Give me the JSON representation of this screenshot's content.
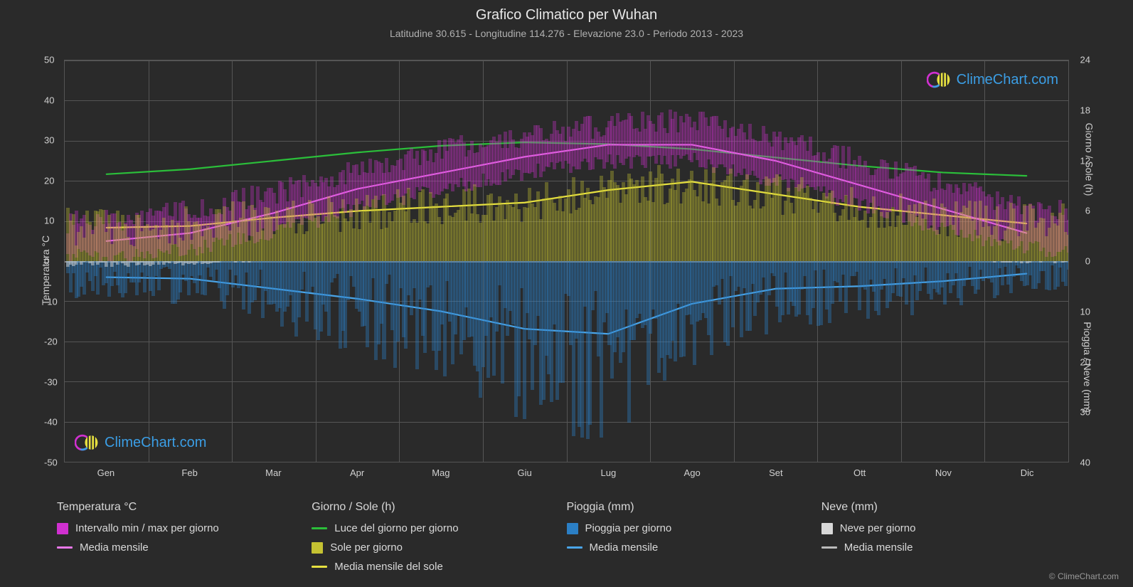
{
  "title": "Grafico Climatico per Wuhan",
  "subtitle": "Latitudine 30.615 - Longitudine 114.276 - Elevazione 23.0 - Periodo 2013 - 2023",
  "brand": "ClimeChart.com",
  "copyright": "© ClimeChart.com",
  "chart": {
    "background_color": "#2a2a2a",
    "grid_color": "#555555",
    "zero_line_color": "#888888",
    "text_color": "#d0d0d0",
    "months": [
      "Gen",
      "Feb",
      "Mar",
      "Apr",
      "Mag",
      "Giu",
      "Lug",
      "Ago",
      "Set",
      "Ott",
      "Nov",
      "Dic"
    ],
    "left_axis": {
      "label": "Temperatura °C",
      "min": -50,
      "max": 50,
      "step": 10,
      "ticks": [
        -50,
        -40,
        -30,
        -20,
        -10,
        0,
        10,
        20,
        30,
        40,
        50
      ]
    },
    "right_axis_top": {
      "label": "Giorno / Sole (h)",
      "min": 0,
      "max": 24,
      "step": 6,
      "ticks": [
        0,
        6,
        12,
        18,
        24
      ]
    },
    "right_axis_bot": {
      "label": "Pioggia / Neve (mm)",
      "min": 0,
      "max": 40,
      "step": 10,
      "ticks": [
        0,
        10,
        20,
        30,
        40
      ]
    },
    "series": {
      "temp_range_fill_color": "#d030d0",
      "temp_range_opacity": 0.55,
      "temp_mean_color": "#e878e8",
      "daylight_color": "#2bbf3a",
      "sun_fill_color": "#c5c232",
      "sun_fill_opacity": 0.5,
      "sun_mean_color": "#e6e040",
      "rain_fill_color": "#2b7fc5",
      "rain_fill_opacity": 0.55,
      "rain_mean_color": "#4aa5e8",
      "snow_fill_color": "#d8d8d8",
      "snow_mean_color": "#bbbbbb",
      "line_width": 2.2
    },
    "temp_mean_monthly": [
      5,
      7,
      12,
      18,
      22,
      26,
      29,
      29,
      25,
      19,
      13,
      7
    ],
    "temp_max_monthly": [
      10,
      13,
      17,
      23,
      28,
      31,
      34,
      35,
      30,
      25,
      19,
      13
    ],
    "temp_min_monthly": [
      1,
      3,
      7,
      13,
      18,
      22,
      25,
      25,
      20,
      14,
      8,
      3
    ],
    "daylight_monthly_h": [
      10.4,
      11.0,
      12.0,
      13.0,
      13.8,
      14.2,
      14.0,
      13.4,
      12.4,
      11.4,
      10.6,
      10.2
    ],
    "sun_mean_monthly_h": [
      4.0,
      4.2,
      5.2,
      6.0,
      6.5,
      7.0,
      8.5,
      9.5,
      8.0,
      6.5,
      5.5,
      4.5
    ],
    "rain_mean_monthly_mm": [
      3.2,
      3.5,
      5.5,
      7.5,
      10.0,
      13.5,
      14.5,
      8.5,
      5.5,
      5.0,
      4.0,
      2.5
    ],
    "snow_mean_monthly_mm": [
      0.3,
      0.2,
      0,
      0,
      0,
      0,
      0,
      0,
      0,
      0,
      0,
      0.1
    ]
  },
  "legend": {
    "cols": [
      {
        "title": "Temperatura °C",
        "items": [
          {
            "type": "block",
            "color": "#d030d0",
            "label": "Intervallo min / max per giorno"
          },
          {
            "type": "line",
            "color": "#e878e8",
            "label": "Media mensile"
          }
        ]
      },
      {
        "title": "Giorno / Sole (h)",
        "items": [
          {
            "type": "line",
            "color": "#2bbf3a",
            "label": "Luce del giorno per giorno"
          },
          {
            "type": "block",
            "color": "#c5c232",
            "label": "Sole per giorno"
          },
          {
            "type": "line",
            "color": "#e6e040",
            "label": "Media mensile del sole"
          }
        ]
      },
      {
        "title": "Pioggia (mm)",
        "items": [
          {
            "type": "block",
            "color": "#2b7fc5",
            "label": "Pioggia per giorno"
          },
          {
            "type": "line",
            "color": "#4aa5e8",
            "label": "Media mensile"
          }
        ]
      },
      {
        "title": "Neve (mm)",
        "items": [
          {
            "type": "block",
            "color": "#d8d8d8",
            "label": "Neve per giorno"
          },
          {
            "type": "line",
            "color": "#bbbbbb",
            "label": "Media mensile"
          }
        ]
      }
    ]
  }
}
